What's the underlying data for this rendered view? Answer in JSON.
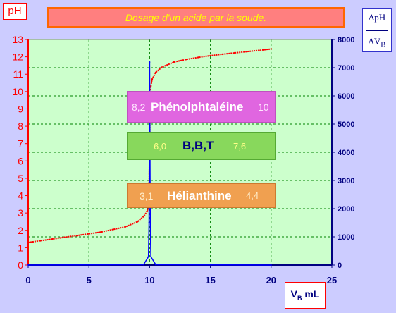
{
  "title": "Dosage d'un acide  par la soude.",
  "ph_label": "pH",
  "derivative_label": {
    "numerator": "ΔpH",
    "denominator": "ΔV",
    "denominator_sub": "B"
  },
  "x_axis_label": {
    "main": "V",
    "sub": "B",
    "unit": " mL"
  },
  "colors": {
    "background": "#ccccff",
    "plot_bg": "#ccffcc",
    "ph_axis": "#ff0000",
    "derivative_axis": "#000080",
    "ph_curve": "#ff0000",
    "derivative_curve": "#0000ff",
    "grid": "#008000"
  },
  "indicators": [
    {
      "id": "phen",
      "name": "Phénolphtaléine",
      "low": "8,2",
      "high": "10",
      "color": "#e066e0"
    },
    {
      "id": "bbt",
      "name": "B,B,T",
      "low": "6,0",
      "high": "7,6",
      "color": "#88d85c"
    },
    {
      "id": "hel",
      "name": "Hélianthine",
      "low": "3,1",
      "high": "4,4",
      "color": "#f0a050"
    }
  ],
  "chart_data": {
    "type": "line",
    "title": "Dosage d'un acide  par la soude.",
    "xlabel": "VB mL",
    "ylabel": "pH",
    "y2label": "ΔpH/ΔVB",
    "xlim": [
      0,
      25
    ],
    "ylim": [
      0,
      13
    ],
    "y2lim": [
      0,
      8000
    ],
    "xticks": [
      0,
      5,
      10,
      15,
      20,
      25
    ],
    "yticks": [
      0,
      1,
      2,
      3,
      4,
      5,
      6,
      7,
      8,
      9,
      10,
      11,
      12,
      13
    ],
    "y2ticks": [
      0,
      1000,
      2000,
      3000,
      4000,
      5000,
      6000,
      7000,
      8000
    ],
    "grid": true,
    "series": [
      {
        "axis": "left",
        "x": [
          0,
          1,
          2,
          3,
          4,
          5,
          6,
          7,
          8,
          9,
          9.5,
          9.8,
          9.9,
          9.95,
          10,
          10.05,
          10.1,
          10.2,
          10.5,
          11,
          12,
          13,
          14,
          15,
          16,
          17,
          18,
          19,
          20
        ],
        "values": [
          1.3,
          1.4,
          1.5,
          1.6,
          1.7,
          1.8,
          1.9,
          2.05,
          2.2,
          2.5,
          2.8,
          3.1,
          3.5,
          4.2,
          7.0,
          9.9,
          10.3,
          10.7,
          11.1,
          11.4,
          11.7,
          11.85,
          11.97,
          12.07,
          12.15,
          12.23,
          12.3,
          12.37,
          12.45
        ]
      },
      {
        "axis": "right",
        "x": [
          0,
          9.5,
          9.9,
          9.95,
          10,
          10.05,
          10.1,
          10.5,
          20
        ],
        "values": [
          0,
          15,
          300,
          1500,
          7200,
          1500,
          300,
          15,
          0
        ]
      }
    ]
  }
}
